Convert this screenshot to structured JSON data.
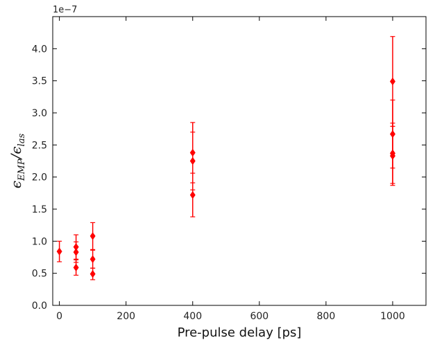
{
  "chart_data": {
    "type": "scatter",
    "xlabel": "Pre-pulse delay [ps]",
    "ylabel": {
      "symbol1": "ϵ",
      "sub1": "EMP",
      "sep": "/",
      "symbol2": "ϵ",
      "sub2": "las"
    },
    "y_offset_label": "1e−7",
    "y_scale": 1e-07,
    "xlim": [
      -20,
      1100
    ],
    "ylim": [
      0.0,
      4.5
    ],
    "xticks": [
      0,
      200,
      400,
      600,
      800,
      1000
    ],
    "xtick_labels": [
      "0",
      "200",
      "400",
      "600",
      "800",
      "1000"
    ],
    "yticks": [
      0.0,
      0.5,
      1.0,
      1.5,
      2.0,
      2.5,
      3.0,
      3.5,
      4.0
    ],
    "ytick_labels": [
      "0.0",
      "0.5",
      "1.0",
      "1.5",
      "2.0",
      "2.5",
      "3.0",
      "3.5",
      "4.0"
    ],
    "grid": false,
    "marker": "diamond",
    "color": "#ff0000",
    "points": [
      {
        "x": 0,
        "y": 0.84,
        "err": 0.16
      },
      {
        "x": 50,
        "y": 0.91,
        "err": 0.19
      },
      {
        "x": 50,
        "y": 0.83,
        "err": 0.16
      },
      {
        "x": 50,
        "y": 0.59,
        "err": 0.12
      },
      {
        "x": 100,
        "y": 1.08,
        "err": 0.21
      },
      {
        "x": 100,
        "y": 0.72,
        "err": 0.14
      },
      {
        "x": 100,
        "y": 0.49,
        "err": 0.09
      },
      {
        "x": 400,
        "y": 2.38,
        "err": 0.47
      },
      {
        "x": 400,
        "y": 2.25,
        "err": 0.45
      },
      {
        "x": 400,
        "y": 1.72,
        "err": 0.34
      },
      {
        "x": 1000,
        "y": 3.49,
        "err": 0.7
      },
      {
        "x": 1000,
        "y": 2.67,
        "err": 0.53
      },
      {
        "x": 1000,
        "y": 2.37,
        "err": 0.47
      },
      {
        "x": 1000,
        "y": 2.33,
        "err": 0.46
      }
    ]
  }
}
